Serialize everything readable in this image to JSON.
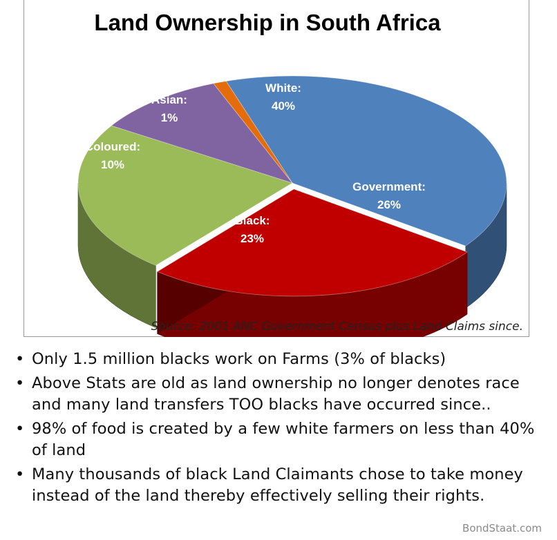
{
  "chart_data": {
    "type": "pie",
    "style": "3d-exploded-perspective",
    "title": "Land Ownership in South Africa",
    "source": "Source: 2001 ANC Government Census plus Land Claims since.",
    "slices": [
      {
        "label": "White:",
        "percent_label": "40%",
        "value": 40,
        "color": "#4F81BD"
      },
      {
        "label": "Government:",
        "percent_label": "26%",
        "value": 26,
        "color": "#C00000"
      },
      {
        "label": "Black:",
        "percent_label": "23%",
        "value": 23,
        "color": "#9BBB59"
      },
      {
        "label": "Coloured:",
        "percent_label": "10%",
        "value": 10,
        "color": "#8064A2"
      },
      {
        "label": "Asian:",
        "percent_label": "1%",
        "value": 1,
        "color": "#E46C0A"
      }
    ]
  },
  "bullets": [
    "Only 1.5 million blacks work on Farms (3% of blacks)",
    "Above Stats are old as land ownership no longer denotes race and many land transfers TOO blacks have occurred since..",
    "98% of food is created by a few white farmers on less than 40% of land",
    "Many thousands of black Land Claimants chose to take money instead of the land thereby effectively selling their rights."
  ],
  "bullet_symbol": "•",
  "watermark": "BondStaat.com"
}
